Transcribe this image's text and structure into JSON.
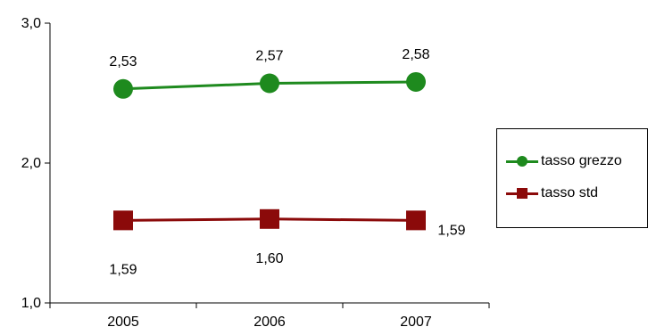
{
  "chart_data": {
    "type": "line",
    "categories": [
      "2005",
      "2006",
      "2007"
    ],
    "ylim": [
      1.0,
      3.0
    ],
    "yticks": [
      "1,0",
      "2,0",
      "3,0"
    ],
    "grid": false,
    "legend_position": "right",
    "series": [
      {
        "name": "tasso grezzo",
        "values": [
          2.53,
          2.57,
          2.58
        ],
        "labels": [
          "2,53",
          "2,57",
          "2,58"
        ],
        "color": "#1e8a1e",
        "marker": "circle"
      },
      {
        "name": "tasso std",
        "values": [
          1.59,
          1.6,
          1.59
        ],
        "labels": [
          "1,59",
          "1,60",
          "1,59"
        ],
        "color": "#8b0a0a",
        "marker": "square"
      }
    ]
  }
}
